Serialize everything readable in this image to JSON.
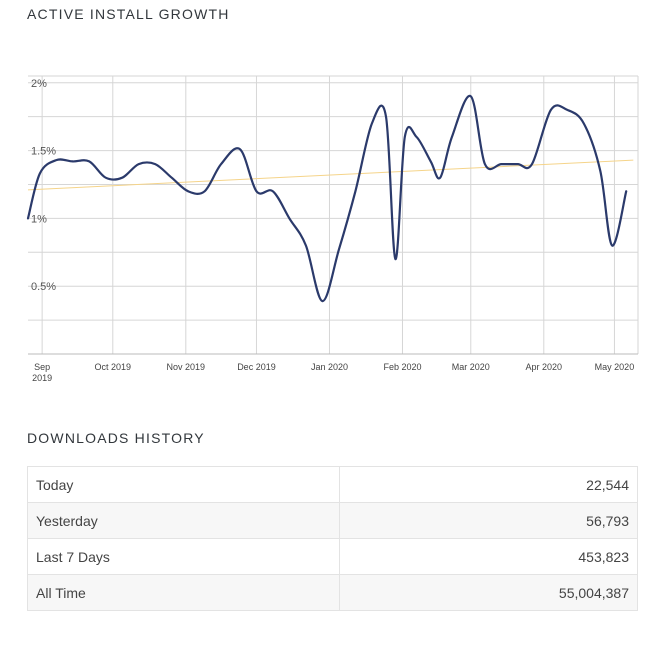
{
  "growth_section": {
    "title": "ACTIVE INSTALL GROWTH"
  },
  "downloads_section": {
    "title": "DOWNLOADS HISTORY"
  },
  "chart_data": {
    "type": "line",
    "title": "ACTIVE INSTALL GROWTH",
    "xlabel": "",
    "ylabel": "",
    "grid": true,
    "legend": "none",
    "ylim": [
      0.0,
      2.05
    ],
    "xlim": [
      "2019-08-26",
      "2020-05-11"
    ],
    "yticks": [
      {
        "value": 0.5,
        "label": "0.5%"
      },
      {
        "value": 1.0,
        "label": "1%"
      },
      {
        "value": 1.5,
        "label": "1.5%"
      },
      {
        "value": 2.0,
        "label": "2%"
      }
    ],
    "xticks": [
      {
        "date": "2019-09-01",
        "label": [
          "Sep",
          "2019"
        ]
      },
      {
        "date": "2019-10-01",
        "label": [
          "Oct 2019"
        ]
      },
      {
        "date": "2019-11-01",
        "label": [
          "Nov 2019"
        ]
      },
      {
        "date": "2019-12-01",
        "label": [
          "Dec 2019"
        ]
      },
      {
        "date": "2020-01-01",
        "label": [
          "Jan 2020"
        ]
      },
      {
        "date": "2020-02-01",
        "label": [
          "Feb 2020"
        ]
      },
      {
        "date": "2020-03-01",
        "label": [
          "Mar 2020"
        ]
      },
      {
        "date": "2020-04-01",
        "label": [
          "Apr 2020"
        ]
      },
      {
        "date": "2020-05-01",
        "label": [
          "May 2020"
        ]
      }
    ],
    "series": [
      {
        "color": "#2b3a6b",
        "points": [
          [
            "2019-08-26",
            1.0
          ],
          [
            "2019-08-31",
            1.33
          ],
          [
            "2019-09-07",
            1.43
          ],
          [
            "2019-09-14",
            1.42
          ],
          [
            "2019-09-21",
            1.42
          ],
          [
            "2019-09-28",
            1.3
          ],
          [
            "2019-10-05",
            1.3
          ],
          [
            "2019-10-12",
            1.4
          ],
          [
            "2019-10-19",
            1.4
          ],
          [
            "2019-10-26",
            1.3
          ],
          [
            "2019-11-02",
            1.2
          ],
          [
            "2019-11-09",
            1.2
          ],
          [
            "2019-11-16",
            1.4
          ],
          [
            "2019-11-24",
            1.51
          ],
          [
            "2019-12-01",
            1.2
          ],
          [
            "2019-12-08",
            1.2
          ],
          [
            "2019-12-15",
            1.0
          ],
          [
            "2019-12-22",
            0.8
          ],
          [
            "2019-12-29",
            0.39
          ],
          [
            "2020-01-05",
            0.77
          ],
          [
            "2020-01-12",
            1.2
          ],
          [
            "2020-01-19",
            1.7
          ],
          [
            "2020-01-25",
            1.75
          ],
          [
            "2020-01-29",
            0.7
          ],
          [
            "2020-02-02",
            1.6
          ],
          [
            "2020-02-07",
            1.6
          ],
          [
            "2020-02-13",
            1.42
          ],
          [
            "2020-02-17",
            1.3
          ],
          [
            "2020-02-22",
            1.6
          ],
          [
            "2020-03-01",
            1.9
          ],
          [
            "2020-03-07",
            1.4
          ],
          [
            "2020-03-14",
            1.4
          ],
          [
            "2020-03-21",
            1.4
          ],
          [
            "2020-03-27",
            1.4
          ],
          [
            "2020-04-04",
            1.8
          ],
          [
            "2020-04-11",
            1.8
          ],
          [
            "2020-04-18",
            1.7
          ],
          [
            "2020-04-25",
            1.35
          ],
          [
            "2020-04-30",
            0.8
          ],
          [
            "2020-05-06",
            1.2
          ]
        ]
      }
    ],
    "trendline": {
      "color": "#f5d48a",
      "start": [
        "2019-08-26",
        1.21
      ],
      "end": [
        "2020-05-09",
        1.43
      ]
    }
  },
  "downloads": {
    "rows": [
      {
        "label": "Today",
        "value": "22,544"
      },
      {
        "label": "Yesterday",
        "value": "56,793"
      },
      {
        "label": "Last 7 Days",
        "value": "453,823"
      },
      {
        "label": "All Time",
        "value": "55,004,387"
      }
    ]
  }
}
